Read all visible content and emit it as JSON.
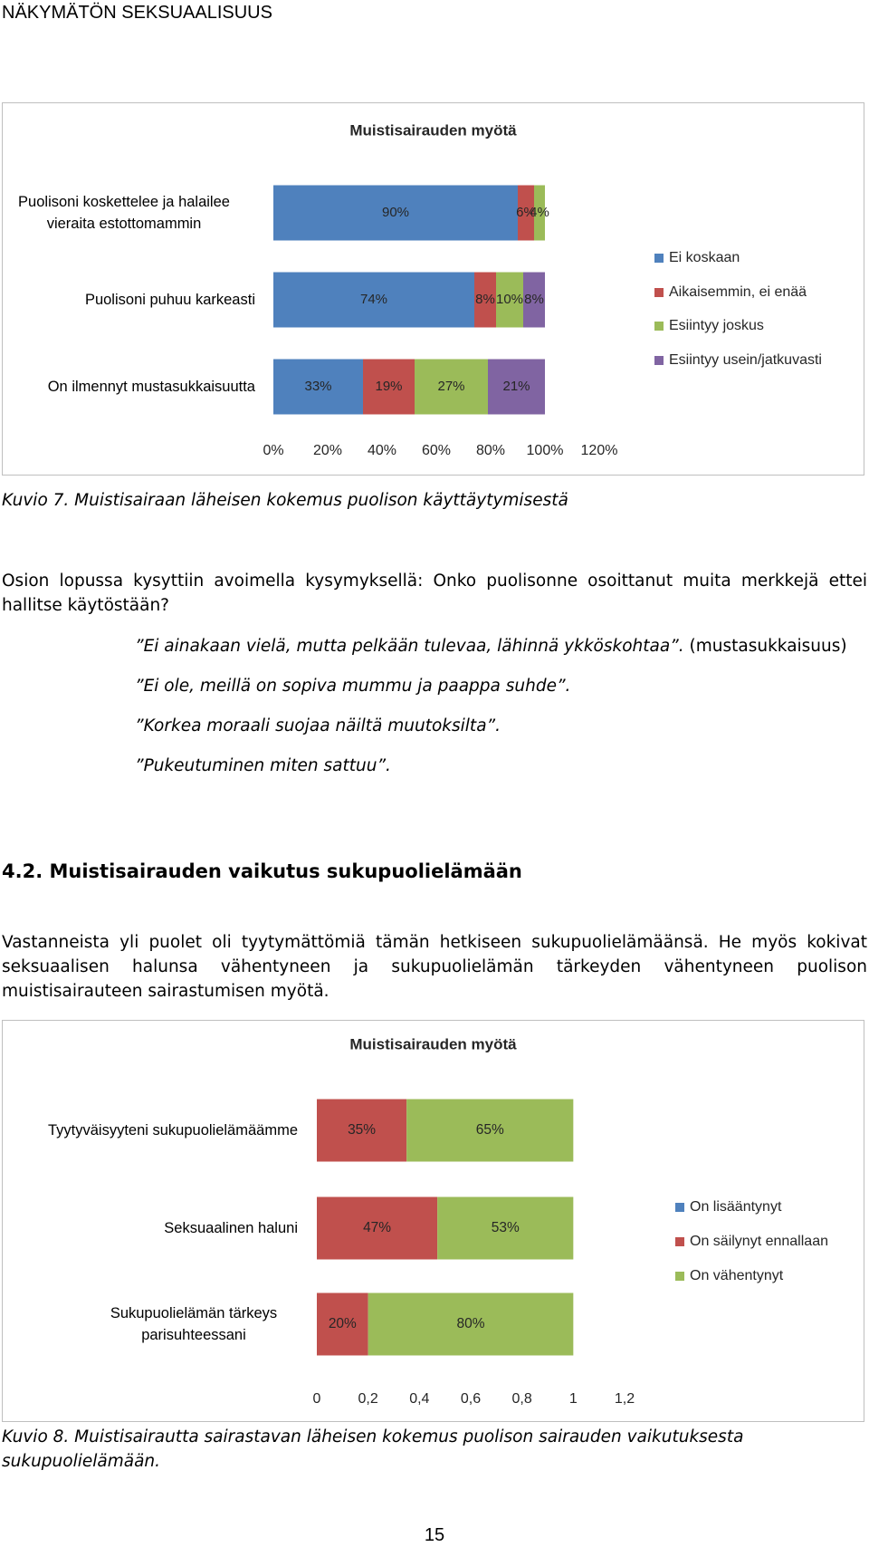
{
  "header": "NÄKYMÄTÖN SEKSUAALISUUS",
  "chart_data": [
    {
      "type": "bar",
      "orientation": "horizontal",
      "stacked": true,
      "title": "Muistisairauden myötä",
      "categories": [
        "Puolisoni koskettelee ja halailee vieraita estottomammin",
        "Puolisoni puhuu karkeasti",
        "On ilmennyt  mustasukkaisuutta"
      ],
      "series": [
        {
          "name": "Ei koskaan",
          "color": "#4f81bd",
          "values": [
            90,
            74,
            33
          ],
          "value_labels": [
            "90%",
            "74%",
            "33%"
          ]
        },
        {
          "name": "Aikaisemmin, ei enää",
          "color": "#c0504d",
          "values": [
            6,
            8,
            19
          ],
          "value_labels": [
            "6%",
            "8%",
            "19%"
          ]
        },
        {
          "name": "Esiintyy joskus",
          "color": "#9bbb59",
          "values": [
            4,
            10,
            27
          ],
          "value_labels": [
            "4%",
            "10%",
            "27%"
          ]
        },
        {
          "name": "Esiintyy usein/jatkuvasti",
          "color": "#8064a2",
          "values": [
            0,
            8,
            21
          ],
          "value_labels": [
            null,
            "8%",
            "21%"
          ]
        }
      ],
      "xlim": [
        0,
        120
      ],
      "xticks": [
        {
          "value": 0,
          "label": "0%"
        },
        {
          "value": 20,
          "label": "20%"
        },
        {
          "value": 40,
          "label": "40%"
        },
        {
          "value": 60,
          "label": "60%"
        },
        {
          "value": 80,
          "label": "80%"
        },
        {
          "value": 100,
          "label": "100%"
        },
        {
          "value": 120,
          "label": "120%"
        }
      ],
      "legend": "right"
    },
    {
      "type": "bar",
      "orientation": "horizontal",
      "stacked": true,
      "title": "Muistisairauden myötä",
      "categories": [
        "Tyytyväisyyteni sukupuolielämäämme",
        "Seksuaalinen haluni",
        "Sukupuolielämän tärkeys parisuhteessani"
      ],
      "series": [
        {
          "name": "On lisääntynyt",
          "color": "#4f81bd",
          "values": [
            0,
            0,
            0
          ]
        },
        {
          "name": "On säilynyt ennallaan",
          "color": "#c0504d",
          "values": [
            0.35,
            0.47,
            0.2
          ],
          "value_labels": [
            "35%",
            "47%",
            "20%"
          ]
        },
        {
          "name": "On vähentynyt",
          "color": "#9bbb59",
          "values": [
            0.65,
            0.53,
            0.8
          ],
          "value_labels": [
            "65%",
            "53%",
            "80%"
          ]
        }
      ],
      "xlim": [
        0,
        1.2
      ],
      "xticks": [
        0,
        {
          "value": 0.2,
          "label": "0,2"
        },
        {
          "value": 0.4,
          "label": "0,4"
        },
        {
          "value": 0.6,
          "label": "0,6"
        },
        {
          "value": 0.8,
          "label": "0,8"
        },
        1,
        {
          "value": 1.2,
          "label": "1,2"
        }
      ],
      "legend": "right"
    }
  ],
  "captions": [
    "Kuvio 7. Muistisairaan läheisen kokemus puolison käyttäytymisestä",
    "Kuvio 8. Muistisairautta sairastavan läheisen kokemus puolison sairauden vaikutuksesta sukupuolielämään."
  ],
  "paragraphs": [
    "Osion lopussa kysyttiin avoimella kysymyksellä: Onko puolisonne osoittanut muita merkkejä ettei hallitse käytöstään?",
    "Vastanneista yli puolet oli tyytymättömiä tämän hetkiseen sukupuolielämäänsä. He myös kokivat seksuaalisen halunsa vähentyneen ja sukupuolielämän tärkeyden vähentyneen puolison muistisairauteen sairastumisen myötä."
  ],
  "quotes": [
    {
      "text": "”Ei ainakaan vielä, mutta pelkään tulevaa, lähinnä ykköskohtaa”.",
      "note": "(mustasukkaisuus)"
    },
    {
      "text": "”Ei ole, meillä on sopiva mummu ja paappa suhde”."
    },
    {
      "text": "”Korkea moraali suojaa näiltä muutoksilta”."
    },
    {
      "text": "”Pukeutuminen miten sattuu”."
    }
  ],
  "heading": "4.2. Muistisairauden vaikutus sukupuolielämään",
  "page_number": "15"
}
